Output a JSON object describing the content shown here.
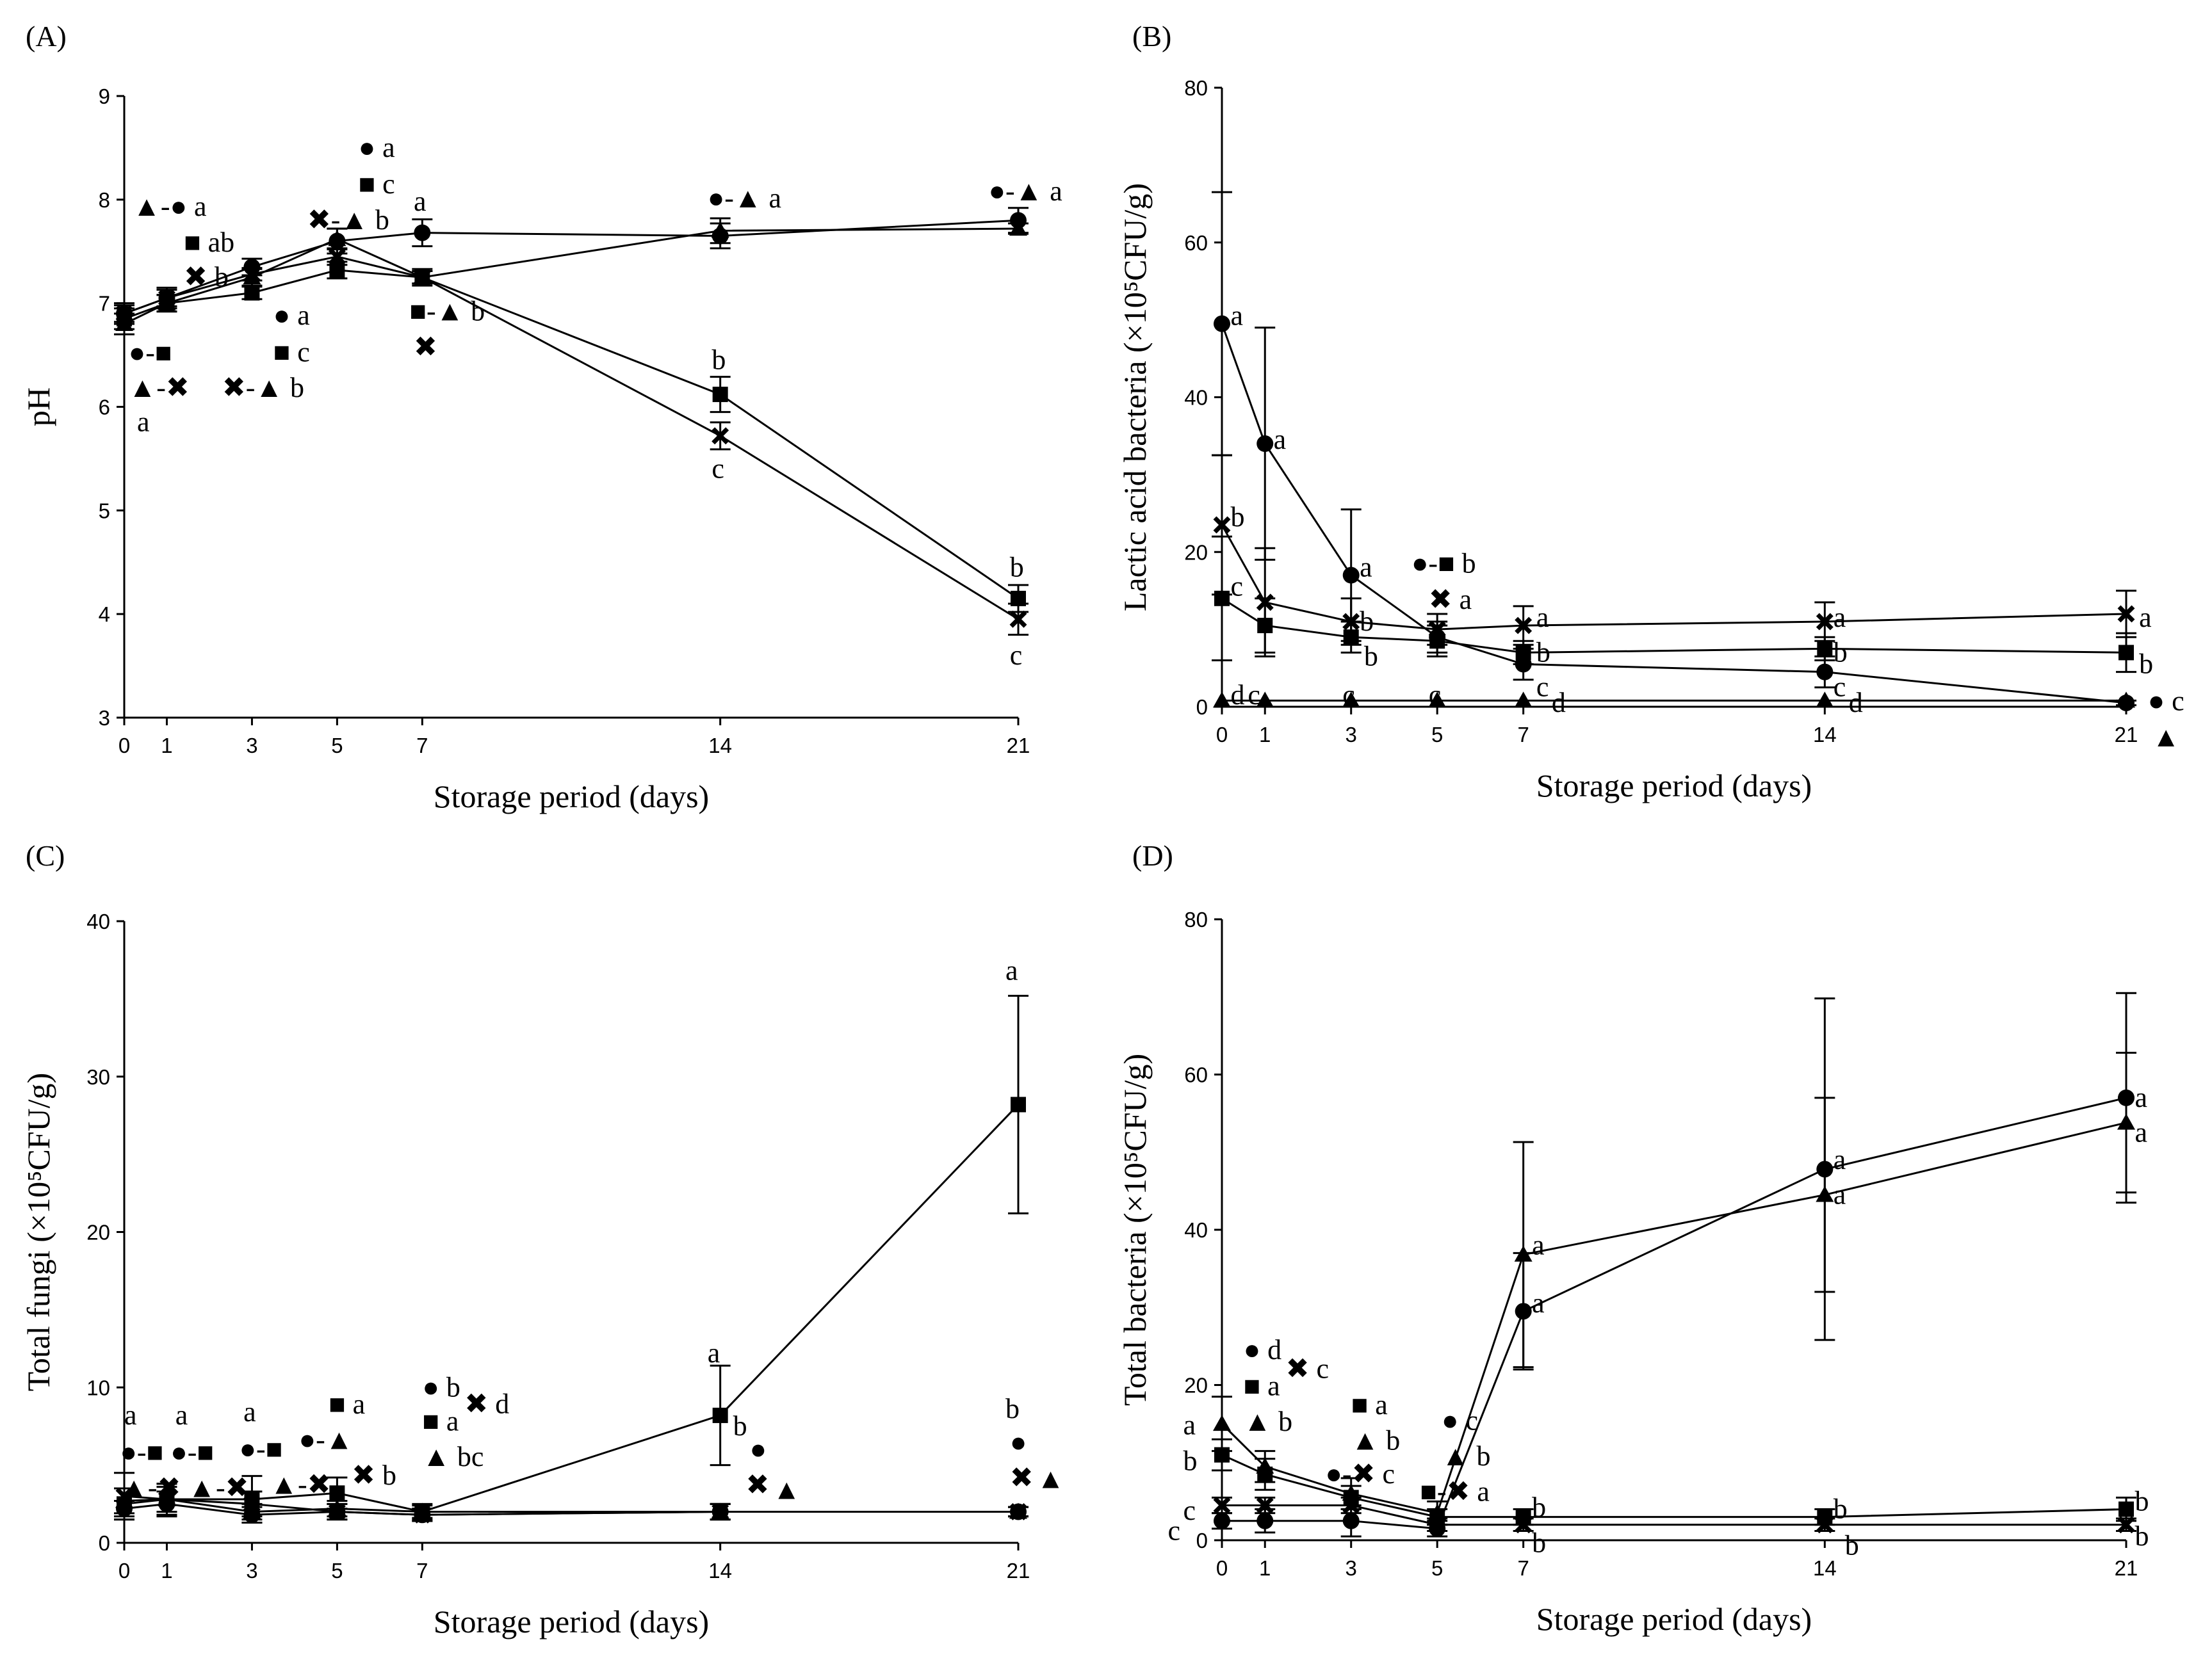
{
  "chart_data": [
    {
      "type": "line",
      "panel_label": "(A)",
      "xlabel": "Storage period (days)",
      "ylabel": "pH",
      "x": [
        0,
        1,
        3,
        5,
        7,
        14,
        21
      ],
      "xticks": [
        "0",
        "1",
        "3",
        "5",
        "7",
        "14",
        "21"
      ],
      "ylim": [
        3,
        9
      ],
      "yticks": [
        3,
        4,
        5,
        6,
        7,
        8,
        9
      ],
      "series": [
        {
          "marker": "circle",
          "values": [
            6.9,
            7.05,
            7.35,
            7.6,
            7.68,
            7.65,
            7.8
          ],
          "err": [
            0.08,
            0.1,
            0.08,
            0.12,
            0.13,
            0.12,
            0.12
          ]
        },
        {
          "marker": "square",
          "values": [
            6.85,
            7.0,
            7.1,
            7.32,
            7.25,
            6.12,
            4.15
          ],
          "err": [
            0.1,
            0.08,
            0.06,
            0.08,
            0.06,
            0.17,
            0.13
          ]
        },
        {
          "marker": "triangle",
          "values": [
            6.8,
            7.0,
            7.25,
            7.62,
            7.25,
            7.7,
            7.72
          ],
          "err": [
            0.1,
            0.08,
            0.08,
            0.1,
            0.08,
            0.12,
            0.05
          ]
        },
        {
          "marker": "cross",
          "values": [
            6.9,
            7.05,
            7.28,
            7.45,
            7.25,
            5.72,
            3.95
          ],
          "err": [
            0.1,
            0.08,
            0.06,
            0.08,
            0.06,
            0.13,
            0.15
          ]
        }
      ],
      "annotations": [
        {
          "x": 0.2,
          "y": 7.93,
          "text": "▲-● a"
        },
        {
          "x": 1.4,
          "y": 7.66,
          "text": "■ ab"
        },
        {
          "x": 1.4,
          "y": 7.4,
          "text": "✖ b"
        },
        {
          "x": 0.1,
          "y": 6.52,
          "text": "●-■"
        },
        {
          "x": 0.1,
          "y": 6.33,
          "text": "▲-✖"
        },
        {
          "x": 0.3,
          "y": 6.0,
          "text": "a"
        },
        {
          "x": 3.5,
          "y": 6.88,
          "text": "● a"
        },
        {
          "x": 3.5,
          "y": 6.6,
          "text": "■ c"
        },
        {
          "x": 2.3,
          "y": 6.33,
          "text": "✖-▲ b"
        },
        {
          "x": 5.5,
          "y": 8.5,
          "text": "● a"
        },
        {
          "x": 5.5,
          "y": 8.22,
          "text": "■ c"
        },
        {
          "x": 4.3,
          "y": 7.95,
          "text": "✖-▲ b"
        },
        {
          "x": 6.8,
          "y": 7.98,
          "text": "a"
        },
        {
          "x": 6.7,
          "y": 6.92,
          "text": "■-▲ b"
        },
        {
          "x": 6.8,
          "y": 6.65,
          "text": "✖"
        },
        {
          "x": 13.7,
          "y": 8.01,
          "text": "●-▲ a"
        },
        {
          "x": 13.8,
          "y": 6.45,
          "text": "b"
        },
        {
          "x": 13.8,
          "y": 5.4,
          "text": "c"
        },
        {
          "x": 20.3,
          "y": 8.08,
          "text": "●-▲ a"
        },
        {
          "x": 20.8,
          "y": 4.45,
          "text": "b"
        },
        {
          "x": 20.8,
          "y": 3.6,
          "text": "c"
        }
      ]
    },
    {
      "type": "line",
      "panel_label": "(B)",
      "xlabel": "Storage period (days)",
      "ylabel": "Lactic acid bacteria (×10⁵CFU/g)",
      "x": [
        0,
        1,
        3,
        5,
        7,
        14,
        21
      ],
      "xticks": [
        "0",
        "1",
        "3",
        "5",
        "7",
        "14",
        "21"
      ],
      "ylim": [
        0,
        80
      ],
      "yticks": [
        0,
        20,
        40,
        60,
        80
      ],
      "series": [
        {
          "marker": "circle",
          "values": [
            49.5,
            34,
            17,
            9,
            5.5,
            4.5,
            0.5
          ],
          "err": [
            17,
            15,
            8.5,
            2,
            2,
            2,
            0.3
          ]
        },
        {
          "marker": "square",
          "values": [
            14,
            10.5,
            9,
            8.5,
            7,
            7.5,
            7
          ],
          "err": [
            8,
            3.5,
            2,
            2,
            1.5,
            1.5,
            2.5
          ]
        },
        {
          "marker": "triangle",
          "values": [
            0.8,
            0.8,
            0.8,
            0.8,
            0.8,
            0.8,
            0.8
          ],
          "err": [
            0,
            0,
            0,
            0,
            0,
            0,
            0
          ]
        },
        {
          "marker": "cross",
          "values": [
            23.5,
            13.5,
            11,
            10,
            10.5,
            11,
            12
          ],
          "err": [
            9,
            7,
            3,
            2,
            2.5,
            2.5,
            3
          ]
        }
      ],
      "annotations": [
        {
          "x": 0.2,
          "y": 50.5,
          "text": "a"
        },
        {
          "x": 1.2,
          "y": 34.5,
          "text": "a"
        },
        {
          "x": 0.2,
          "y": 24.5,
          "text": "b"
        },
        {
          "x": 0.2,
          "y": 15.5,
          "text": "c"
        },
        {
          "x": 0.2,
          "y": 1.5,
          "text": "d"
        },
        {
          "x": 0.6,
          "y": 1.5,
          "text": "c"
        },
        {
          "x": 3.2,
          "y": 18,
          "text": "a"
        },
        {
          "x": 3.2,
          "y": 11,
          "text": "b"
        },
        {
          "x": 3.3,
          "y": 7.5,
          "text": "b"
        },
        {
          "x": 2.8,
          "y": 1.5,
          "text": "c"
        },
        {
          "x": 4.4,
          "y": 18.5,
          "text": "●-■ b"
        },
        {
          "x": 4.8,
          "y": 14.8,
          "text": "✖ a"
        },
        {
          "x": 4.8,
          "y": 1.5,
          "text": "c"
        },
        {
          "x": 7.3,
          "y": 11.5,
          "text": "a"
        },
        {
          "x": 7.3,
          "y": 7,
          "text": "b"
        },
        {
          "x": 7.3,
          "y": 4.5,
          "text": "c"
        },
        {
          "x": 7.3,
          "y": 0.5,
          "text": "d"
        },
        {
          "x": 14.2,
          "y": 11.5,
          "text": "a"
        },
        {
          "x": 14.2,
          "y": 7.5,
          "text": "b"
        },
        {
          "x": 14.2,
          "y": 4,
          "text": "c"
        },
        {
          "x": 14.2,
          "y": 0.5,
          "text": "d"
        },
        {
          "x": 21.3,
          "y": 11.5,
          "text": "a"
        },
        {
          "x": 21.3,
          "y": 5.5,
          "text": "b"
        },
        {
          "x": 21.5,
          "y": 1.2,
          "text": "● c"
        },
        {
          "x": 21.6,
          "y": -1.5,
          "text": "▲"
        }
      ]
    },
    {
      "type": "line",
      "panel_label": "(C)",
      "xlabel": "Storage period (days)",
      "ylabel": "Total fungi (×10⁵CFU/g)",
      "x": [
        0,
        1,
        3,
        5,
        7,
        14,
        21
      ],
      "xticks": [
        "0",
        "1",
        "3",
        "5",
        "7",
        "14",
        "21"
      ],
      "ylim": [
        0,
        40
      ],
      "yticks": [
        0,
        10,
        20,
        30,
        40
      ],
      "series": [
        {
          "marker": "circle",
          "values": [
            2.2,
            2.5,
            1.8,
            2.0,
            1.8,
            2.0,
            2.0
          ],
          "err": [
            0.5,
            0.8,
            0.5,
            0.5,
            0.4,
            0.5,
            0.3
          ]
        },
        {
          "marker": "square",
          "values": [
            2.5,
            2.8,
            2.8,
            3.2,
            2.0,
            8.2,
            28.2
          ],
          "err": [
            1.0,
            1.0,
            1.5,
            1.0,
            0.5,
            3.2,
            7.0
          ]
        },
        {
          "marker": "triangle",
          "values": [
            2.7,
            2.8,
            2.0,
            2.2,
            2.0,
            2.0,
            2.0
          ],
          "err": [
            0.8,
            0.8,
            0.5,
            0.5,
            0.4,
            0.5,
            0.3
          ]
        },
        {
          "marker": "cross",
          "values": [
            3.0,
            2.8,
            2.5,
            2.0,
            1.8,
            2.0,
            2.0
          ],
          "err": [
            1.5,
            1.0,
            0.8,
            0.5,
            0.4,
            0.5,
            0.3
          ]
        }
      ],
      "annotations": [
        {
          "x": 0,
          "y": 8.2,
          "text": "a"
        },
        {
          "x": 1.2,
          "y": 8.2,
          "text": "a"
        },
        {
          "x": -0.1,
          "y": 6.8,
          "text": "●-■ ●-■"
        },
        {
          "x": -0.1,
          "y": 5.5,
          "text": "▲-✖ ▲-✖"
        },
        {
          "x": 2.8,
          "y": 8.4,
          "text": "a"
        },
        {
          "x": 2.7,
          "y": 7.0,
          "text": "●-■"
        },
        {
          "x": 2.7,
          "y": 5.7,
          "text": "▲-✖"
        },
        {
          "x": 4.8,
          "y": 8.9,
          "text": "■ a"
        },
        {
          "x": 4.1,
          "y": 7.1,
          "text": "●-▲"
        },
        {
          "x": 4.8,
          "y": 5.8,
          "text": "✖ b"
        },
        {
          "x": 7.0,
          "y": 10.0,
          "text": "● b"
        },
        {
          "x": 7.0,
          "y": 8.8,
          "text": "■ a"
        },
        {
          "x": 7.0,
          "y": 7.5,
          "text": "▲ bc"
        },
        {
          "x": 7.0,
          "y": 6.2,
          "text": "✖ d"
        },
        {
          "x": 13.7,
          "y": 12.2,
          "text": "a"
        },
        {
          "x": 14.3,
          "y": 7.5,
          "text": "b"
        },
        {
          "x": 14.6,
          "y": 6.0,
          "text": "●"
        },
        {
          "x": 14.6,
          "y": 4.7,
          "text": "✖"
        },
        {
          "x": 14.6,
          "y": 3.4,
          "text": "▲"
        },
        {
          "x": 20.7,
          "y": 36.8,
          "text": "a"
        },
        {
          "x": 20.7,
          "y": 8.6,
          "text": "b"
        },
        {
          "x": 20.8,
          "y": 6.7,
          "text": "●"
        },
        {
          "x": 20.8,
          "y": 5.4,
          "text": "✖"
        },
        {
          "x": 20.8,
          "y": 4.1,
          "text": "▲"
        }
      ]
    },
    {
      "type": "line",
      "panel_label": "(D)",
      "xlabel": "Storage period (days)",
      "ylabel": "Total bacteria (×10⁵CFU/g)",
      "x": [
        0,
        1,
        3,
        5,
        7,
        14,
        21
      ],
      "xticks": [
        "0",
        "1",
        "3",
        "5",
        "7",
        "14",
        "21"
      ],
      "ylim": [
        0,
        80
      ],
      "yticks": [
        0,
        20,
        40,
        60,
        80
      ],
      "series": [
        {
          "marker": "circle",
          "values": [
            2.5,
            2.5,
            2.5,
            1.5,
            29.5,
            47.8,
            57
          ],
          "err": [
            1,
            1.5,
            2,
            1,
            7.5,
            22,
            13.5
          ]
        },
        {
          "marker": "square",
          "values": [
            11,
            8.5,
            5.5,
            3,
            3,
            3,
            4
          ],
          "err": [
            2,
            2,
            1.5,
            1,
            1,
            1,
            1.5
          ]
        },
        {
          "marker": "triangle",
          "values": [
            15,
            9.5,
            6,
            3.5,
            36.8,
            44.5,
            53.8
          ],
          "err": [
            3.5,
            2,
            2,
            1.5,
            14.5,
            12.5,
            9
          ]
        },
        {
          "marker": "cross",
          "values": [
            4.5,
            4.5,
            4.5,
            2,
            2,
            2,
            2
          ],
          "err": [
            1,
            1,
            1,
            0.8,
            0.8,
            0.8,
            0.8
          ]
        }
      ],
      "annotations": [
        {
          "x": 0.5,
          "y": 24.5,
          "text": "● d"
        },
        {
          "x": 0.5,
          "y": 21.8,
          "text": "■ a"
        },
        {
          "x": 0.5,
          "y": 19.2,
          "text": "▲ b"
        },
        {
          "x": 0.5,
          "y": 16.6,
          "text": "✖ c"
        },
        {
          "x": -0.9,
          "y": 14.8,
          "text": "a"
        },
        {
          "x": -0.9,
          "y": 10.2,
          "text": "b"
        },
        {
          "x": -0.9,
          "y": 3.8,
          "text": "c"
        },
        {
          "x": -0.9,
          "y": 1.2,
          "text": "c"
        },
        {
          "x": 3.0,
          "y": 17.4,
          "text": "■ a"
        },
        {
          "x": 3.0,
          "y": 14.8,
          "text": "▲ b"
        },
        {
          "x": 2.4,
          "y": 9.5,
          "text": "●-✖ c"
        },
        {
          "x": 5.1,
          "y": 15.4,
          "text": "● c"
        },
        {
          "x": 5.1,
          "y": 11.8,
          "text": "▲ b"
        },
        {
          "x": 4.6,
          "y": 8.2,
          "text": "■-✖ a"
        },
        {
          "x": 7.2,
          "y": 38,
          "text": "a"
        },
        {
          "x": 7.2,
          "y": 30.5,
          "text": "a"
        },
        {
          "x": 7.2,
          "y": 4.2,
          "text": "b"
        },
        {
          "x": 7.2,
          "y": 0.6,
          "text": "b"
        },
        {
          "x": 14.2,
          "y": 49,
          "text": "a"
        },
        {
          "x": 14.2,
          "y": 45.5,
          "text": "a"
        },
        {
          "x": 14.2,
          "y": 4,
          "text": "b"
        },
        {
          "x": 14.2,
          "y": 0.8,
          "text": "b"
        },
        {
          "x": 21.2,
          "y": 57,
          "text": "a"
        },
        {
          "x": 21.2,
          "y": 53,
          "text": "a"
        },
        {
          "x": 21.2,
          "y": 5,
          "text": "b"
        },
        {
          "x": 21.2,
          "y": 1,
          "text": "b"
        }
      ]
    }
  ]
}
